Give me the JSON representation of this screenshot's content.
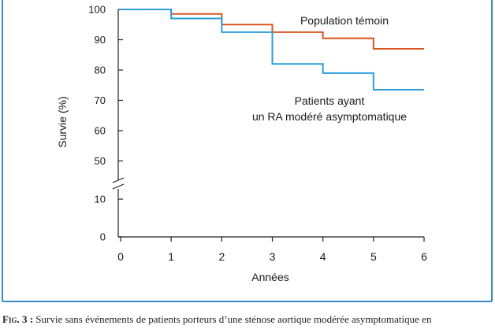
{
  "chart_data": {
    "type": "line",
    "step": true,
    "title": "",
    "xlabel": "Années",
    "ylabel": "Survie (%)",
    "xlim": [
      0,
      6
    ],
    "x_ticks": [
      "0",
      "1",
      "2",
      "3",
      "4",
      "5",
      "6"
    ],
    "y_ticks_upper": [
      "50",
      "60",
      "70",
      "80",
      "90",
      "100"
    ],
    "y_ticks_lower": [
      "0",
      "10"
    ],
    "y_axis_break": true,
    "grid": false,
    "legend": "inline labels",
    "series": [
      {
        "name": "Population témoin",
        "color": "#d9541e",
        "x": [
          0,
          1,
          2,
          3,
          4,
          5,
          6
        ],
        "y": [
          100,
          98.5,
          95,
          92.5,
          90.5,
          87,
          87
        ]
      },
      {
        "name": "Patients ayant un RA modéré asymptomatique",
        "name_lines": [
          "Patients ayant",
          "un RA modéré asymptomatique"
        ],
        "color": "#2a9fd8",
        "x": [
          0,
          1,
          2,
          3,
          4,
          5,
          6
        ],
        "y": [
          100,
          97,
          92.5,
          82,
          79,
          73.5,
          73.5
        ]
      }
    ]
  },
  "frame_color": "#3b87c8",
  "caption": {
    "label": "Fig. 3 :",
    "text": "Survie sans événements de patients porteurs d’une sténose aortique modérée asymptomatique en"
  }
}
